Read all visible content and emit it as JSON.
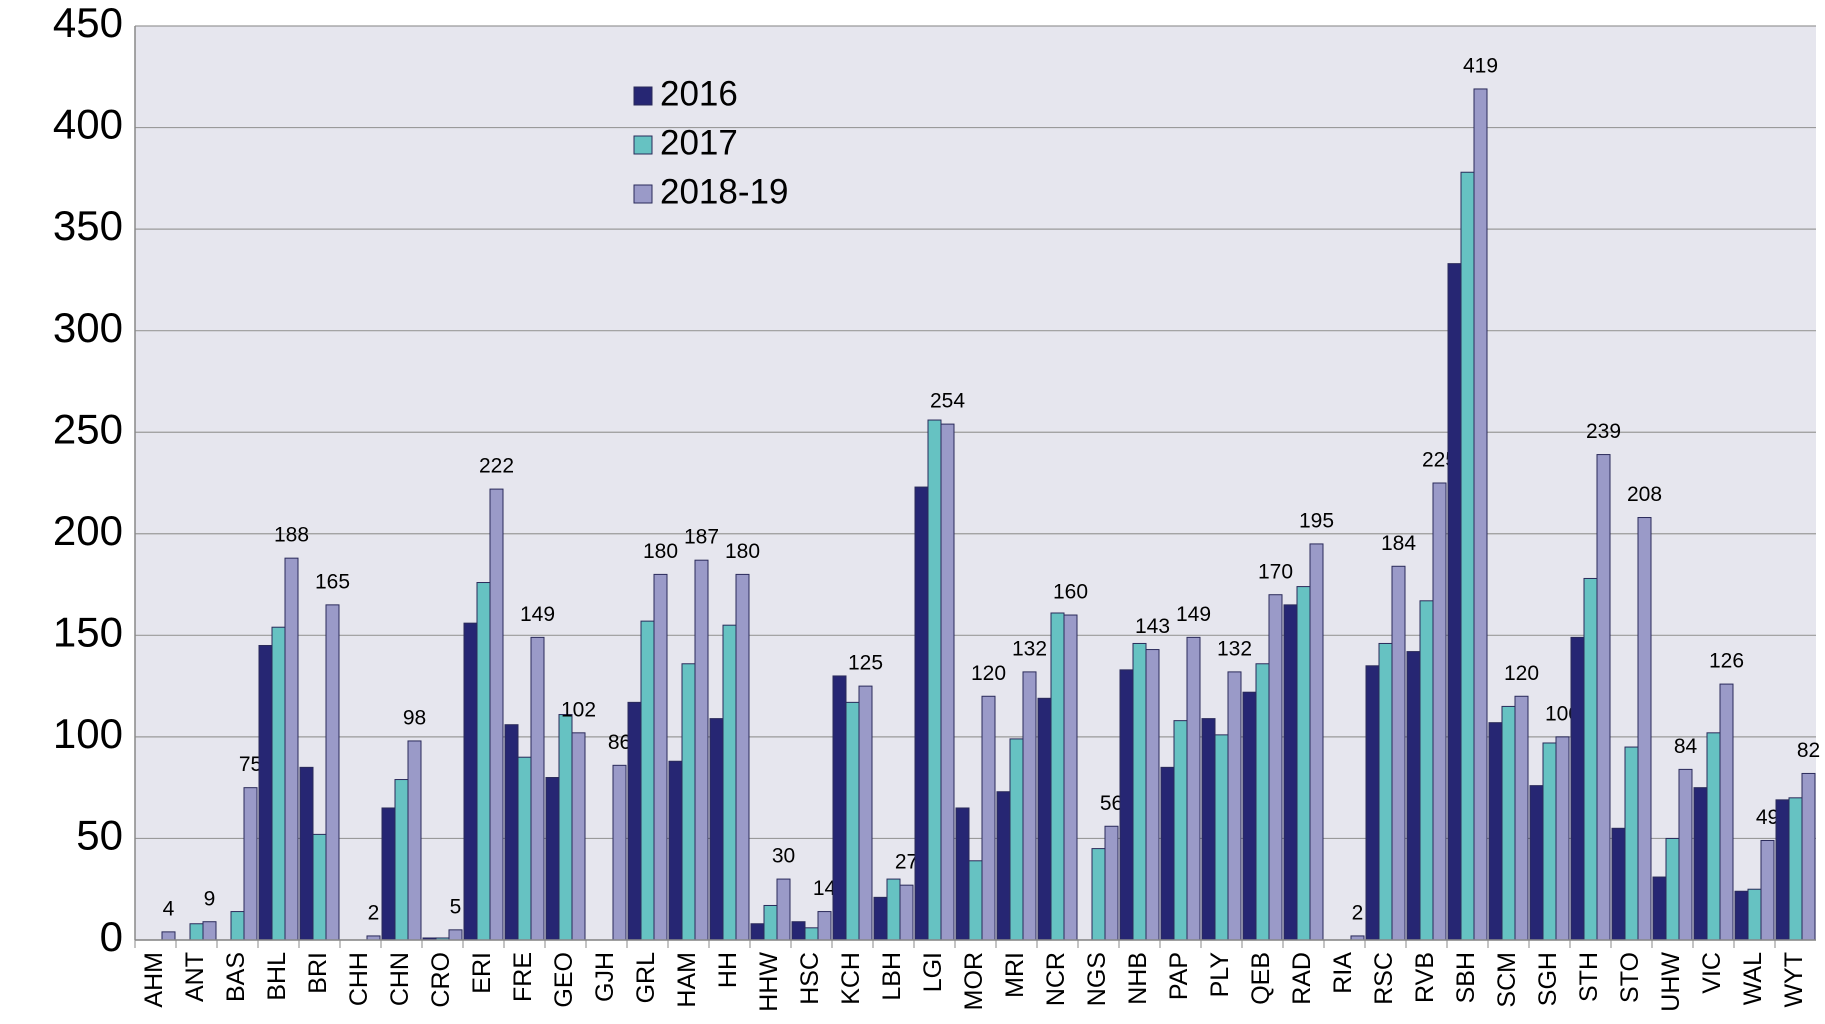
{
  "chart_data": {
    "type": "bar",
    "categories": [
      "AHM",
      "ANT",
      "BAS",
      "BHL",
      "BRI",
      "CHH",
      "CHN",
      "CRO",
      "ERI",
      "FRE",
      "GEO",
      "GJH",
      "GRL",
      "HAM",
      "HH",
      "HHW",
      "HSC",
      "KCH",
      "LBH",
      "LGI",
      "MOR",
      "MRI",
      "NCR",
      "NGS",
      "NHB",
      "PAP",
      "PLY",
      "QEB",
      "RAD",
      "RIA",
      "RSC",
      "RVB",
      "SBH",
      "SCM",
      "SGH",
      "STH",
      "STO",
      "UHW",
      "VIC",
      "WAL",
      "WYT"
    ],
    "series": [
      {
        "name": "2016",
        "color": "#262673",
        "values": [
          null,
          null,
          null,
          145,
          85,
          null,
          65,
          1,
          156,
          106,
          80,
          null,
          117,
          88,
          109,
          8,
          9,
          130,
          21,
          223,
          65,
          73,
          119,
          null,
          133,
          85,
          109,
          122,
          165,
          null,
          135,
          142,
          333,
          107,
          76,
          149,
          55,
          31,
          75,
          24,
          69
        ]
      },
      {
        "name": "2017",
        "color": "#66c2c2",
        "values": [
          null,
          8,
          14,
          154,
          52,
          null,
          79,
          1,
          176,
          90,
          111,
          null,
          157,
          136,
          155,
          17,
          6,
          117,
          30,
          256,
          39,
          99,
          161,
          45,
          146,
          108,
          101,
          136,
          174,
          null,
          146,
          167,
          378,
          115,
          97,
          178,
          95,
          50,
          102,
          25,
          70
        ]
      },
      {
        "name": "2018-19",
        "color": "#9a9ac8",
        "show_labels": true,
        "values": [
          4,
          9,
          75,
          188,
          165,
          2,
          98,
          5,
          222,
          149,
          102,
          86,
          180,
          187,
          180,
          30,
          14,
          125,
          27,
          254,
          120,
          132,
          160,
          56,
          143,
          149,
          132,
          170,
          195,
          2,
          184,
          225,
          419,
          120,
          100,
          239,
          208,
          84,
          126,
          49,
          82
        ]
      }
    ],
    "ylim": [
      0,
      450
    ],
    "yticks": [
      0,
      50,
      100,
      150,
      200,
      250,
      300,
      350,
      400,
      450
    ],
    "grid": true,
    "legend": "top"
  }
}
